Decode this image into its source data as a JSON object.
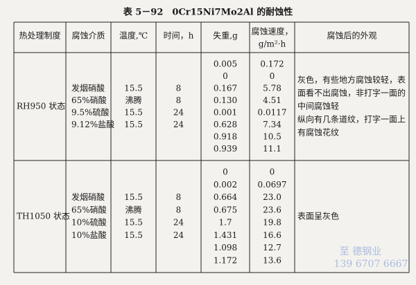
{
  "title": "表 5－92　0Cr15Ni7Mo2Al 的耐蚀性",
  "table": {
    "headers": [
      "热处理制度",
      "腐蚀介质",
      "温度,℃",
      "时间，h",
      "失重,g",
      [
        "腐蚀速度，",
        "g/m²·h"
      ],
      "腐蚀后的外观"
    ],
    "blocks": [
      {
        "treatment": "RH950 状态",
        "media": [
          "发烟硝酸",
          "65%硝酸",
          "9.5%硫酸",
          "9.12%盐酸"
        ],
        "temperature": [
          "15.5",
          "沸腾",
          "15.5",
          "15.5"
        ],
        "time": [
          "8",
          "8",
          "24",
          "24"
        ],
        "weight_loss": [
          "0.005",
          "0",
          "0.167",
          "0.130",
          "0.001",
          "0.628",
          "0.918",
          "0.939"
        ],
        "corrosion_rate": [
          "0.172",
          "0",
          "5.78",
          "4.51",
          "0.0117",
          "7.34",
          "10.5",
          "11.1"
        ],
        "appearance": [
          "灰色，有些地方腐蚀较轻，表",
          "面看不出腐蚀，非打字一面的",
          "中间腐蚀轻",
          "纵向有几条道纹，打字一面上",
          "有腐蚀花纹"
        ]
      },
      {
        "treatment": "TH1050 状态",
        "media": [
          "发烟硝酸",
          "65%硝酸",
          "10%硫酸",
          "10%盐酸"
        ],
        "temperature": [
          "15.5",
          "沸腾",
          "15.5",
          "15.5"
        ],
        "time": [
          "8",
          "8",
          "24",
          "24"
        ],
        "weight_loss": [
          "0",
          "0.002",
          "0.664",
          "0.675",
          "1.7",
          "1.431",
          "1.098",
          "1.172"
        ],
        "corrosion_rate": [
          "0",
          "0.0697",
          "23.0",
          "23.6",
          "19.8",
          "16.6",
          "12.7",
          "13.6"
        ],
        "appearance": [
          "表面呈灰色"
        ]
      }
    ]
  },
  "watermark": [
    "至 德钢业",
    "139 6707 6667"
  ]
}
